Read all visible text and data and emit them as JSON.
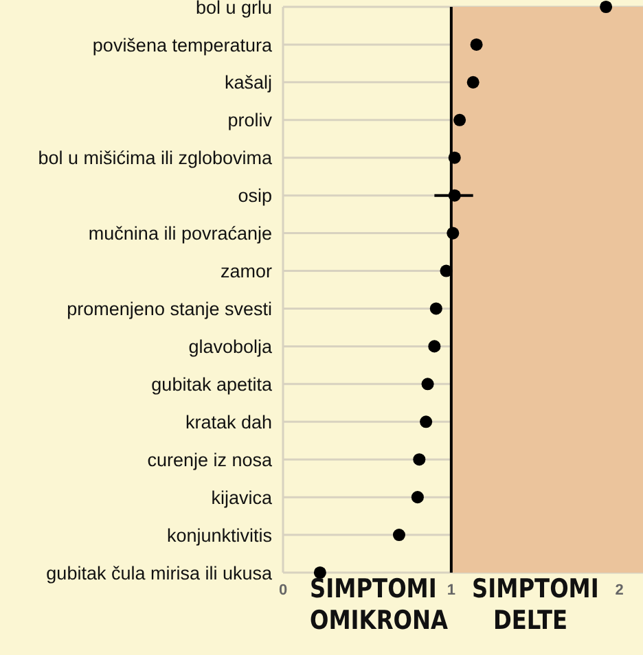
{
  "chart_data": {
    "type": "scatter",
    "categories": [
      "bol u grlu",
      "povišena temperatura",
      "kašalj",
      "proliv",
      "bol u mišićima ili zglobovima",
      "osip",
      "mučnina ili povraćanje",
      "zamor",
      "promenjeno stanje svesti",
      "glavobolja",
      "gubitak apetita",
      "kratak dah",
      "curenje iz nosa",
      "kijavica",
      "konjunktivitis",
      "gubitak čula mirisa ili ukusa"
    ],
    "series": [
      {
        "color": "#000000",
        "values": [
          1.92,
          1.15,
          1.13,
          1.05,
          1.02,
          1.02,
          1.01,
          0.97,
          0.91,
          0.9,
          0.86,
          0.85,
          0.81,
          0.8,
          0.69,
          0.22
        ],
        "errors": [
          null,
          null,
          null,
          null,
          null,
          [
            0.9,
            1.13
          ],
          null,
          null,
          null,
          null,
          null,
          null,
          null,
          null,
          null,
          null
        ]
      }
    ],
    "orientation": "horizontal",
    "xlim": [
      0,
      2.14
    ],
    "xticks": [
      0,
      1,
      2
    ],
    "ref_lines": [
      {
        "axis": "x",
        "value": 1,
        "color": "#000000"
      }
    ],
    "bands": [
      {
        "axis": "x",
        "from": 1,
        "to": 2.14,
        "color": "#ebc49c"
      }
    ],
    "annotations": [
      "SIMPTOMI OMIKRONA",
      "SIMPTOMI DELTE"
    ],
    "grid": true,
    "marker": "circle"
  }
}
